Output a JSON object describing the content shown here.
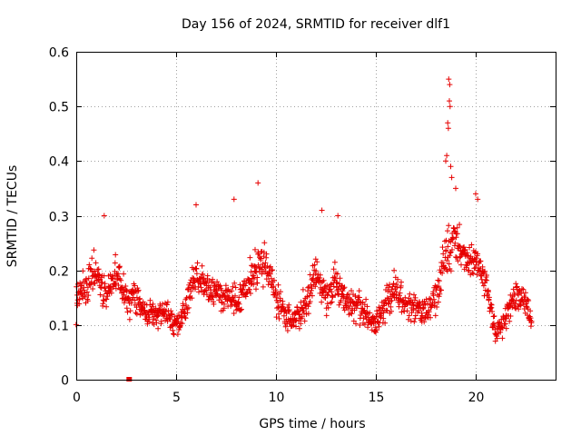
{
  "chart_data": {
    "type": "scatter",
    "title": "Day 156 of 2024, SRMTID for receiver dlf1",
    "xlabel": "GPS time / hours",
    "ylabel": "SRMTID / TECUs",
    "xlim": [
      0,
      24
    ],
    "ylim": [
      0,
      0.6
    ],
    "xticks": [
      "0",
      "5",
      "10",
      "15",
      "20"
    ],
    "yticks": [
      "0",
      "0.1",
      "0.2",
      "0.3",
      "0.4",
      "0.5",
      "0.6"
    ],
    "grid": true,
    "marker": "plus",
    "color": "#e60000",
    "series": [
      {
        "name": "SRMTID",
        "envelope": {
          "x": [
            0.0,
            0.5,
            1.0,
            1.5,
            2.0,
            2.5,
            3.0,
            3.5,
            4.0,
            4.5,
            5.0,
            5.5,
            6.0,
            6.5,
            7.0,
            7.5,
            8.0,
            8.5,
            9.0,
            9.5,
            10.0,
            10.5,
            11.0,
            11.5,
            12.0,
            12.5,
            13.0,
            13.5,
            14.0,
            14.5,
            15.0,
            15.5,
            16.0,
            16.5,
            17.0,
            17.5,
            18.0,
            18.5,
            19.0,
            19.5,
            20.0,
            20.5,
            21.0,
            21.5,
            22.0,
            22.5,
            22.8
          ],
          "mean": [
            0.15,
            0.17,
            0.2,
            0.15,
            0.2,
            0.15,
            0.15,
            0.12,
            0.12,
            0.12,
            0.1,
            0.13,
            0.19,
            0.17,
            0.16,
            0.15,
            0.14,
            0.17,
            0.2,
            0.22,
            0.15,
            0.12,
            0.11,
            0.14,
            0.19,
            0.15,
            0.18,
            0.14,
            0.14,
            0.12,
            0.1,
            0.14,
            0.17,
            0.13,
            0.14,
            0.12,
            0.15,
            0.23,
            0.26,
            0.22,
            0.22,
            0.18,
            0.08,
            0.12,
            0.15,
            0.15,
            0.1
          ],
          "spread": [
            0.04,
            0.05,
            0.06,
            0.05,
            0.06,
            0.05,
            0.05,
            0.04,
            0.04,
            0.05,
            0.04,
            0.05,
            0.06,
            0.05,
            0.05,
            0.04,
            0.05,
            0.05,
            0.07,
            0.06,
            0.05,
            0.04,
            0.04,
            0.05,
            0.06,
            0.05,
            0.06,
            0.05,
            0.05,
            0.04,
            0.04,
            0.05,
            0.06,
            0.05,
            0.05,
            0.05,
            0.05,
            0.08,
            0.07,
            0.05,
            0.06,
            0.05,
            0.04,
            0.05,
            0.05,
            0.05,
            0.03
          ]
        },
        "peaks": [
          {
            "x": 18.65,
            "y": 0.55
          },
          {
            "x": 18.7,
            "y": 0.54
          },
          {
            "x": 18.68,
            "y": 0.51
          },
          {
            "x": 18.72,
            "y": 0.5
          },
          {
            "x": 18.6,
            "y": 0.47
          },
          {
            "x": 18.63,
            "y": 0.46
          },
          {
            "x": 18.55,
            "y": 0.41
          },
          {
            "x": 18.5,
            "y": 0.4
          },
          {
            "x": 18.75,
            "y": 0.39
          },
          {
            "x": 18.8,
            "y": 0.37
          },
          {
            "x": 19.0,
            "y": 0.35
          },
          {
            "x": 20.0,
            "y": 0.34
          },
          {
            "x": 20.1,
            "y": 0.33
          },
          {
            "x": 9.1,
            "y": 0.36
          },
          {
            "x": 7.9,
            "y": 0.33
          },
          {
            "x": 6.0,
            "y": 0.32
          },
          {
            "x": 1.4,
            "y": 0.3
          },
          {
            "x": 12.3,
            "y": 0.31
          },
          {
            "x": 13.1,
            "y": 0.3
          }
        ],
        "outliers": [
          {
            "x": 2.65,
            "y": 0.0
          }
        ]
      }
    ]
  }
}
